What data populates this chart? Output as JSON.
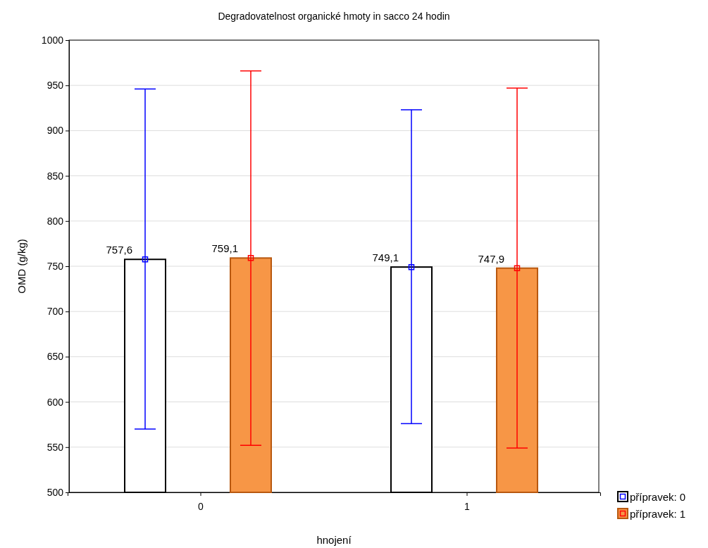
{
  "chart_data": {
    "type": "bar",
    "title": "Degradovatelnost organické hmoty in sacco 24 hodin",
    "xlabel": "hnojení",
    "ylabel": "OMD (g/kg)",
    "categories": [
      "0",
      "1"
    ],
    "series": [
      {
        "name": "přípravek: 0",
        "color": "#ffffff",
        "values": [
          757.6,
          749.1
        ],
        "errors": [
          [
            570,
            946
          ],
          [
            576,
            923
          ]
        ],
        "value_labels": [
          "757,6",
          "749,1"
        ]
      },
      {
        "name": "přípravek: 1",
        "color": "#f79646",
        "values": [
          759.1,
          747.9
        ],
        "errors": [
          [
            552,
            966
          ],
          [
            549,
            947
          ]
        ],
        "value_labels": [
          "759,1",
          "747,9"
        ]
      }
    ],
    "ylim": [
      500,
      1000
    ],
    "yticks": [
      500,
      550,
      600,
      650,
      700,
      750,
      800,
      850,
      900,
      950,
      1000
    ],
    "grid": "y",
    "legend": "bottom right",
    "marker": "square"
  }
}
